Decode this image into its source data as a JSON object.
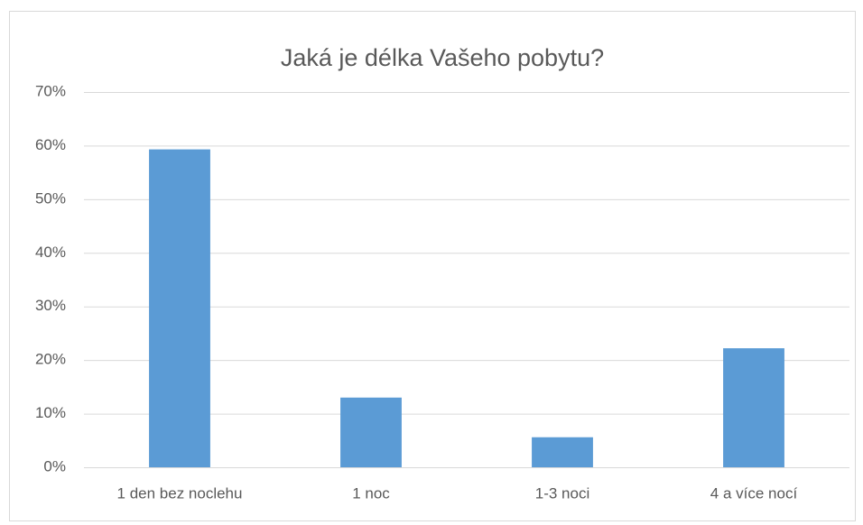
{
  "chart_data": {
    "type": "bar",
    "title": "Jaká je délka Vašeho pobytu?",
    "categories": [
      "1 den bez noclehu",
      "1 noc",
      "1-3 noci",
      "4 a více nocí"
    ],
    "values": [
      59.3,
      13,
      5.6,
      22.2
    ],
    "color": "#5b9bd5",
    "ylim": [
      0,
      70
    ],
    "yticks": [
      {
        "value": 0,
        "label": "0%"
      },
      {
        "value": 10,
        "label": "10%"
      },
      {
        "value": 20,
        "label": "20%"
      },
      {
        "value": 30,
        "label": "30%"
      },
      {
        "value": 40,
        "label": "40%"
      },
      {
        "value": 50,
        "label": "50%"
      },
      {
        "value": 60,
        "label": "60%"
      },
      {
        "value": 70,
        "label": "70%"
      }
    ],
    "grid": true
  }
}
